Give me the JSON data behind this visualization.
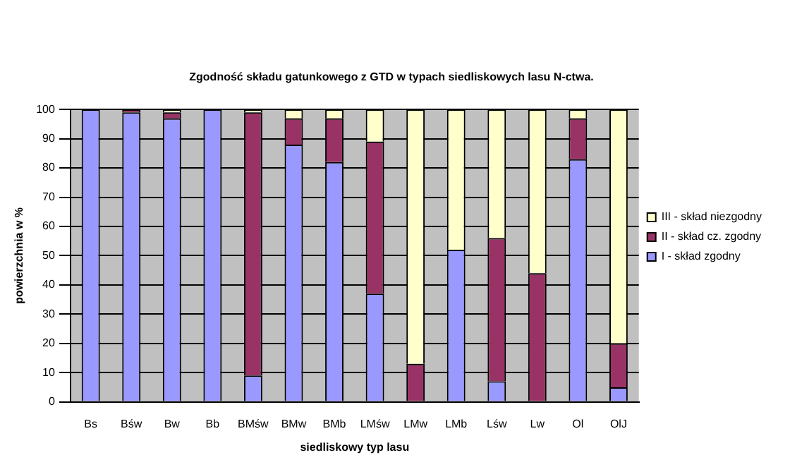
{
  "chart_data": {
    "type": "bar",
    "stacked": true,
    "title": "Zgodność składu gatunkowego z GTD w typach siedliskowych lasu N-ctwa.",
    "xlabel": "siedliskowy typ lasu",
    "ylabel": "powierzchnia w %",
    "categories": [
      "Bs",
      "Bśw",
      "Bw",
      "Bb",
      "BMśw",
      "BMw",
      "BMb",
      "LMśw",
      "LMw",
      "LMb",
      "Lśw",
      "Lw",
      "Ol",
      "OlJ"
    ],
    "series": [
      {
        "name": "I - skład zgodny",
        "color": "#9999ff",
        "values": [
          100,
          99,
          97,
          100,
          9,
          88,
          82,
          37,
          0,
          52,
          7,
          0,
          83,
          5
        ]
      },
      {
        "name": "II - skład cz. zgodny",
        "color": "#993366",
        "values": [
          0,
          1,
          2,
          0,
          90,
          9,
          15,
          52,
          13,
          0,
          49,
          44,
          14,
          15
        ]
      },
      {
        "name": "III - skład niezgodny",
        "color": "#ffffcc",
        "values": [
          0,
          0,
          1,
          0,
          1,
          3,
          3,
          11,
          87,
          48,
          44,
          56,
          3,
          80
        ]
      }
    ],
    "ylim": [
      0,
      100
    ],
    "yticks": [
      0,
      10,
      20,
      30,
      40,
      50,
      60,
      70,
      80,
      90,
      100
    ],
    "grid": "y",
    "legend": "right"
  }
}
